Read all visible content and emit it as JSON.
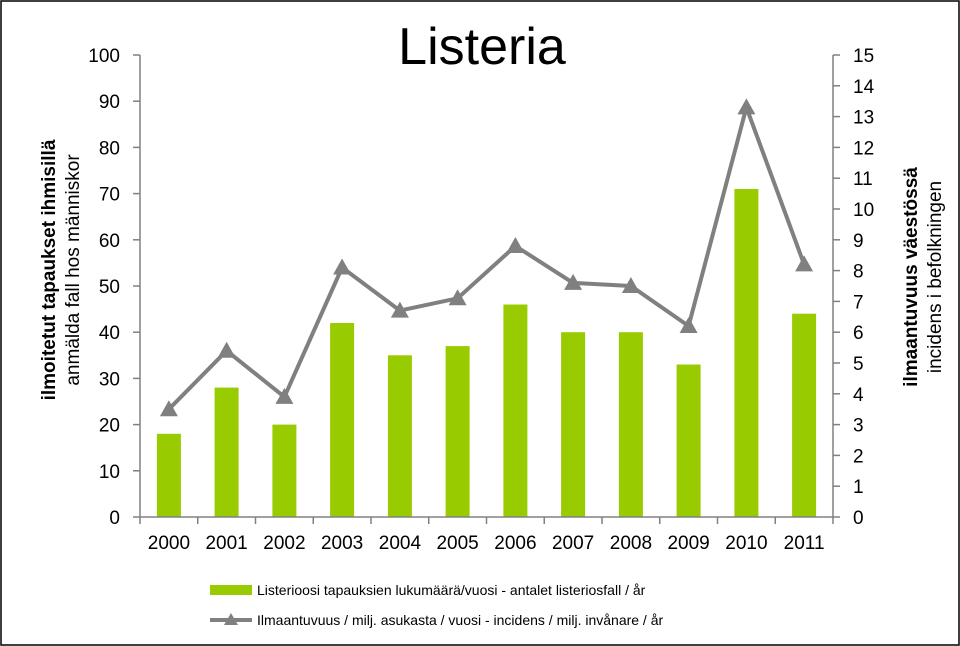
{
  "colors": {
    "bar": "#99CC00",
    "line": "#808080",
    "axis": "#808080",
    "border": "#000000"
  },
  "chart_data": {
    "type": "bar",
    "title": "Listeria",
    "categories": [
      "2000",
      "2001",
      "2002",
      "2003",
      "2004",
      "2005",
      "2006",
      "2007",
      "2008",
      "2009",
      "2010",
      "2011"
    ],
    "series": [
      {
        "name": "Listerioosi tapauksien lukumäärä/vuosi - antalet listeriosfall / år",
        "type": "bar",
        "axis": "left",
        "values": [
          18,
          28,
          20,
          42,
          35,
          37,
          46,
          40,
          40,
          33,
          71,
          44
        ]
      },
      {
        "name": "Ilmaantuvuus / milj. asukasta / vuosi - incidens / milj. invånare / år",
        "type": "line",
        "marker": "triangle",
        "axis": "right",
        "values": [
          3.5,
          5.4,
          3.9,
          8.1,
          6.7,
          7.1,
          8.8,
          7.6,
          7.5,
          6.2,
          13.3,
          8.2
        ]
      }
    ],
    "y_left": {
      "label_bold": "ilmoitetut tapaukset ihmisillä",
      "label": "anmälda fall hos människor",
      "ylim": [
        0,
        100
      ],
      "ticks": [
        0,
        10,
        20,
        30,
        40,
        50,
        60,
        70,
        80,
        90,
        100
      ]
    },
    "y_right": {
      "label_bold": "ilmaantuvuus väestössä",
      "label": "incidens i befolkningen",
      "ylim": [
        0,
        15
      ],
      "ticks": [
        0,
        1,
        2,
        3,
        4,
        5,
        6,
        7,
        8,
        9,
        10,
        11,
        12,
        13,
        14,
        15
      ]
    },
    "grid": false,
    "legend_position": "bottom"
  }
}
